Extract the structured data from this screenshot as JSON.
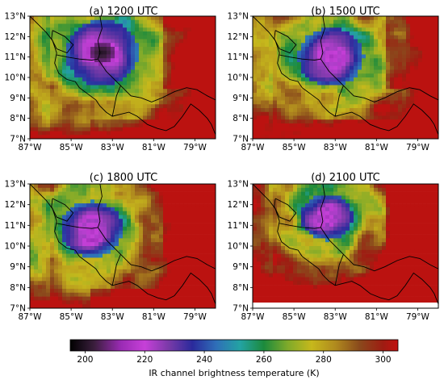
{
  "figure": {
    "panels": [
      {
        "title": "(a) 1200 UTC",
        "time": "1200 UTC"
      },
      {
        "title": "(b) 1500 UTC",
        "time": "1500 UTC"
      },
      {
        "title": "(c) 1800 UTC",
        "time": "1800 UTC"
      },
      {
        "title": "(d) 2100 UTC",
        "time": "2100 UTC"
      }
    ],
    "lat_ticks": [
      "13°N",
      "12°N",
      "11°N",
      "10°N",
      "9°N",
      "8°N",
      "7°N"
    ],
    "lon_ticks": [
      "87°W",
      "85°W",
      "83°W",
      "81°W",
      "79°W"
    ],
    "colorbar": {
      "label": "IR channel brightness temperature (K)",
      "ticks": [
        "200",
        "220",
        "240",
        "260",
        "280",
        "300"
      ],
      "min": 195,
      "max": 305,
      "stops": [
        {
          "t": 195,
          "color": "#000000"
        },
        {
          "t": 203,
          "color": "#3a1e3c"
        },
        {
          "t": 212,
          "color": "#9a2bb4"
        },
        {
          "t": 220,
          "color": "#c640d8"
        },
        {
          "t": 228,
          "color": "#7a3aa8"
        },
        {
          "t": 236,
          "color": "#2a2a9c"
        },
        {
          "t": 244,
          "color": "#2f6fb8"
        },
        {
          "t": 252,
          "color": "#23a3a3"
        },
        {
          "t": 260,
          "color": "#1c8a3c"
        },
        {
          "t": 268,
          "color": "#7faa2a"
        },
        {
          "t": 276,
          "color": "#c6b81c"
        },
        {
          "t": 284,
          "color": "#b08a1e"
        },
        {
          "t": 292,
          "color": "#8a4a1c"
        },
        {
          "t": 300,
          "color": "#9e1c12"
        },
        {
          "t": 305,
          "color": "#c21010"
        }
      ]
    },
    "map_extent": {
      "lon": [
        -87,
        -78
      ],
      "lat": [
        7,
        13
      ]
    },
    "storms": [
      {
        "lon": -83.5,
        "lat": 11.2,
        "size": 1.0
      },
      {
        "lon": -83.2,
        "lat": 11.0,
        "size": 0.9
      },
      {
        "lon": -84.0,
        "lat": 10.8,
        "size": 0.85
      },
      {
        "lon": -83.4,
        "lat": 11.4,
        "size": 0.7
      }
    ],
    "colors": {
      "axis": "#000000",
      "coast": "#000000",
      "background": "#ffffff"
    }
  }
}
